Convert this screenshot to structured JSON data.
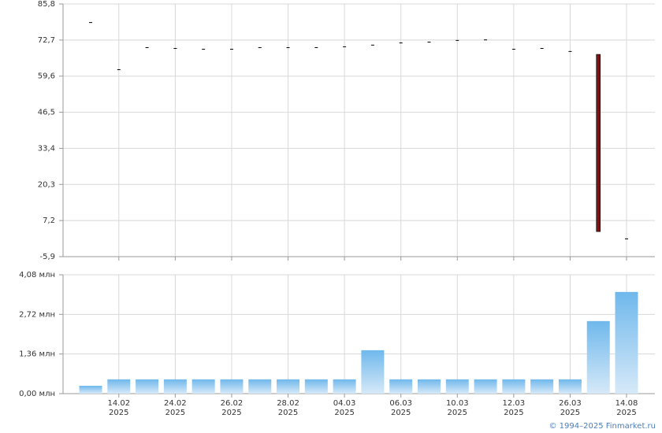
{
  "chart_data": [
    {
      "type": "candlestick",
      "open": [
        79.2,
        62.1,
        70.1,
        69.8,
        69.5,
        69.5,
        70.1,
        70.1,
        70.1,
        70.4,
        71.0,
        71.8,
        72.1,
        72.7,
        72.9,
        69.5,
        69.8,
        68.7,
        67.5,
        0.7
      ],
      "close": [
        79.2,
        62.1,
        70.1,
        69.8,
        69.5,
        69.5,
        70.1,
        70.1,
        70.1,
        70.4,
        71.0,
        71.8,
        72.1,
        72.7,
        72.9,
        69.5,
        69.8,
        68.7,
        3.2,
        0.7
      ],
      "color": "#000000",
      "down_color": "#7a1414",
      "ylim": [
        -5.9,
        85.8
      ],
      "yticks": [
        {
          "value": 85.8,
          "label": "85,8"
        },
        {
          "value": 72.7,
          "label": "72,7"
        },
        {
          "value": 59.6,
          "label": "59,6"
        },
        {
          "value": 46.5,
          "label": "46,5"
        },
        {
          "value": 33.4,
          "label": "33,4"
        },
        {
          "value": 20.3,
          "label": "20,3"
        },
        {
          "value": 7.2,
          "label": "7,2"
        },
        {
          "value": -5.9,
          "label": "-5,9"
        }
      ],
      "grid": true
    },
    {
      "type": "bar",
      "categories": [
        null,
        "14.02 2025",
        null,
        "24.02 2025",
        null,
        "26.02 2025",
        null,
        "28.02 2025",
        null,
        "04.03 2025",
        null,
        "06.03 2025",
        null,
        "10.03 2025",
        null,
        "12.03 2025",
        null,
        "26.03 2025",
        null,
        "14.08 2025"
      ],
      "values": [
        0.27,
        0.49,
        0.49,
        0.49,
        0.49,
        0.49,
        0.49,
        0.49,
        0.49,
        0.49,
        1.49,
        0.49,
        0.49,
        0.49,
        0.49,
        0.49,
        0.49,
        0.49,
        2.49,
        3.49
      ],
      "color": "#6fb8ec",
      "ylim": [
        0,
        4.08
      ],
      "yticks": [
        {
          "value": 0,
          "label": "0,00 млн"
        },
        {
          "value": 1.36,
          "label": "1,36 млн"
        },
        {
          "value": 2.72,
          "label": "2,72 млн"
        },
        {
          "value": 4.08,
          "label": "4,08 млн"
        }
      ],
      "grid": true
    }
  ],
  "footer": "© 1994–2025 Finmarket.ru"
}
